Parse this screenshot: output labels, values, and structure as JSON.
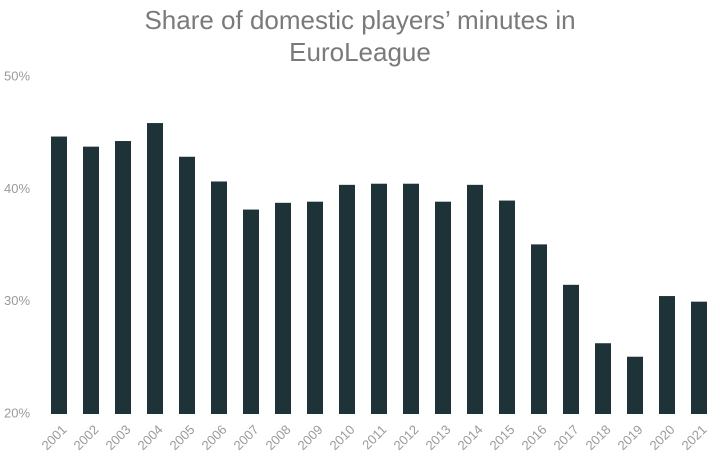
{
  "chart_data": {
    "type": "bar",
    "title": "Share of domestic players’ minutes in EuroLeague",
    "categories": [
      "2001",
      "2002",
      "2003",
      "2004",
      "2005",
      "2006",
      "2007",
      "2008",
      "2009",
      "2010",
      "2011",
      "2012",
      "2013",
      "2014",
      "2015",
      "2016",
      "2017",
      "2018",
      "2019",
      "2020",
      "2021"
    ],
    "values": [
      44.7,
      43.8,
      44.3,
      45.9,
      42.9,
      40.7,
      38.2,
      38.8,
      38.9,
      40.4,
      40.5,
      40.5,
      38.9,
      40.4,
      39.0,
      35.1,
      31.5,
      26.3,
      25.1,
      30.5,
      30.0
    ],
    "color": "#1d3338",
    "ylim": [
      20,
      50
    ],
    "yticks": [
      {
        "value": 20,
        "label": "20%"
      },
      {
        "value": 30,
        "label": "30%"
      },
      {
        "value": 40,
        "label": "40%"
      },
      {
        "value": 50,
        "label": "50%"
      }
    ]
  }
}
